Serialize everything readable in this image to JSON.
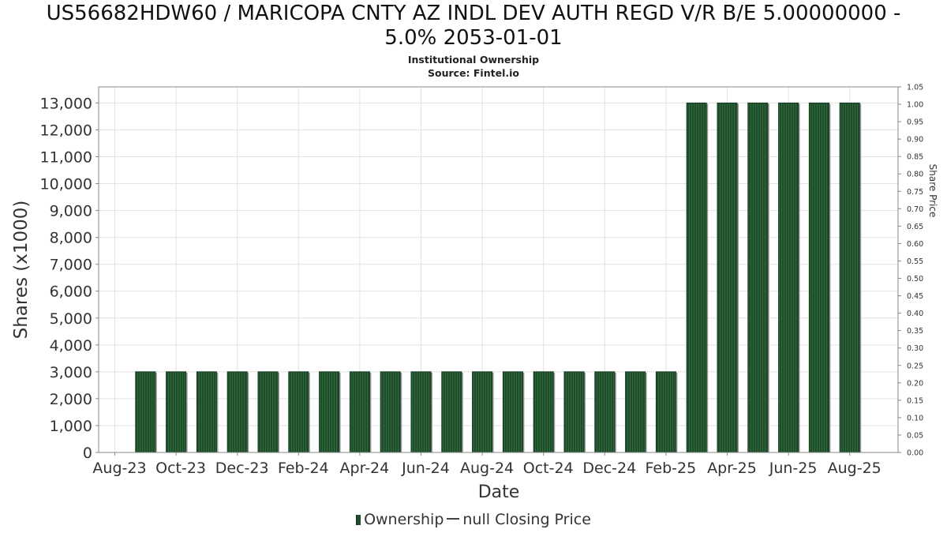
{
  "title_line1": "US56682HDW60 / MARICOPA CNTY AZ INDL DEV AUTH REGD V/R B/E 5.00000000 -",
  "title_line2": "5.0% 2053-01-01",
  "subtitle_line1": "Institutional Ownership",
  "subtitle_line2": "Source: Fintel.io",
  "chart_data": {
    "type": "bar",
    "xlabel": "Date",
    "ylabel": "Shares (x1000)",
    "y2label": "Share Price",
    "ylim": [
      0,
      13600
    ],
    "y2lim": [
      0,
      1.05
    ],
    "yticks": [
      "0",
      "1,000",
      "2,000",
      "3,000",
      "4,000",
      "5,000",
      "6,000",
      "7,000",
      "8,000",
      "9,000",
      "10,000",
      "11,000",
      "12,000",
      "13,000"
    ],
    "y2ticks": [
      "0.00",
      "0.05",
      "0.10",
      "0.15",
      "0.20",
      "0.25",
      "0.30",
      "0.35",
      "0.40",
      "0.45",
      "0.50",
      "0.55",
      "0.60",
      "0.65",
      "0.70",
      "0.75",
      "0.80",
      "0.85",
      "0.90",
      "0.95",
      "1.00",
      "1.05"
    ],
    "xticks": [
      "Aug-23",
      "Oct-23",
      "Dec-23",
      "Feb-24",
      "Apr-24",
      "Jun-24",
      "Aug-24",
      "Oct-24",
      "Dec-24",
      "Feb-25",
      "Apr-25",
      "Jun-25",
      "Aug-25"
    ],
    "grid": true,
    "legend_position": "bottom",
    "series": [
      {
        "name": "Ownership",
        "type": "bar",
        "color": "#1f4d2c",
        "values": [
          3000,
          3000,
          3000,
          3000,
          3000,
          3000,
          3000,
          3000,
          3000,
          3000,
          3000,
          3000,
          3000,
          3000,
          3000,
          3000,
          3000,
          3000,
          13000,
          13000,
          13000,
          13000,
          13000,
          13000
        ]
      },
      {
        "name": "null Closing Price",
        "type": "line",
        "color": "#444444",
        "values": []
      }
    ]
  }
}
